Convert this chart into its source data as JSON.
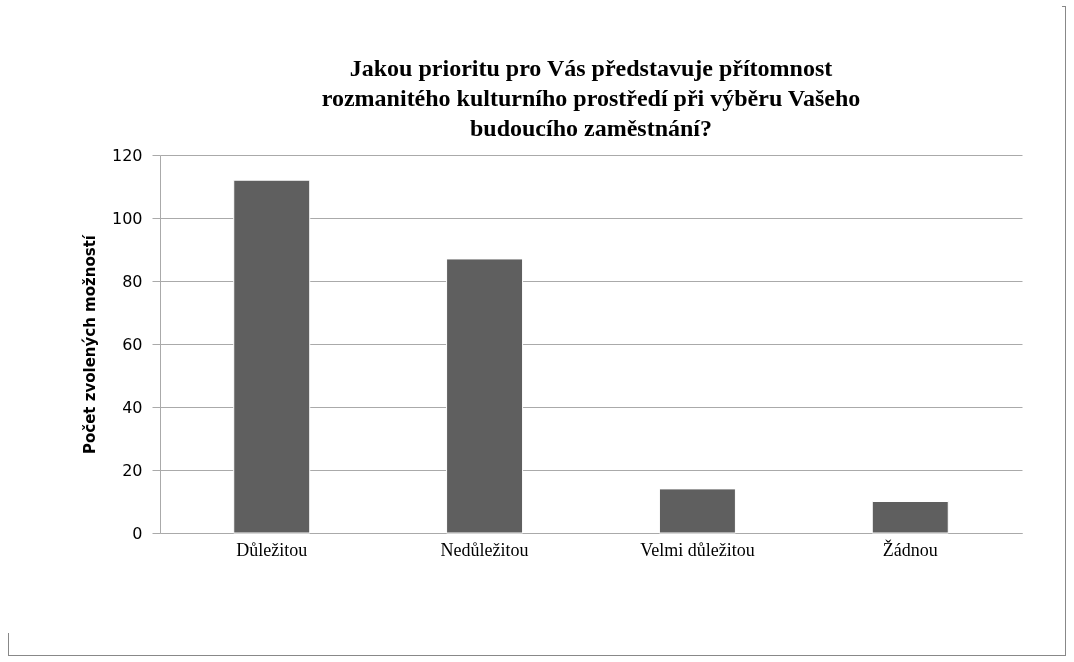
{
  "chart_data": {
    "type": "bar",
    "title": [
      "Jakou prioritu pro Vás představuje přítomnost",
      "rozmanitého kulturního prostředí při výběru Vašeho",
      "budoucího zaměstnání?"
    ],
    "ylabel": "Počet zvolených možností",
    "categories": [
      "Důležitou",
      "Nedůležitou",
      "Velmi důležitou",
      "Žádnou"
    ],
    "values": [
      112,
      87,
      14,
      10
    ],
    "color": "#5f5f5f",
    "ylim": [
      0,
      120
    ],
    "yticks": [
      0,
      20,
      40,
      60,
      80,
      100,
      120
    ],
    "grid": "y"
  }
}
